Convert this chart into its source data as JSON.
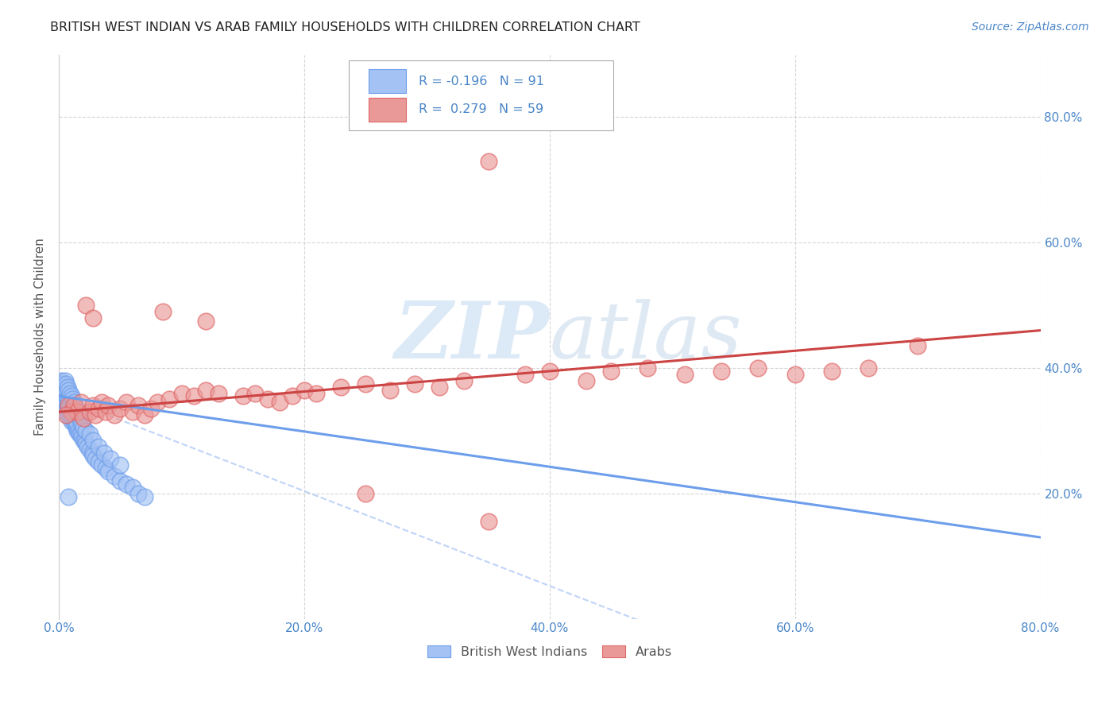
{
  "title": "BRITISH WEST INDIAN VS ARAB FAMILY HOUSEHOLDS WITH CHILDREN CORRELATION CHART",
  "source": "Source: ZipAtlas.com",
  "ylabel": "Family Households with Children",
  "watermark_zip": "ZIP",
  "watermark_atlas": "atlas",
  "xlim": [
    0.0,
    0.8
  ],
  "ylim": [
    0.0,
    0.9
  ],
  "xticks": [
    0.0,
    0.2,
    0.4,
    0.6,
    0.8
  ],
  "yticks": [
    0.2,
    0.4,
    0.6,
    0.8
  ],
  "blue_color": "#a4c2f4",
  "pink_color": "#ea9999",
  "blue_edge_color": "#6d9eeb",
  "pink_edge_color": "#e06666",
  "blue_line_color": "#6d9eeb",
  "pink_line_color": "#cc4444",
  "blue_dash_color": "#a4c2f4",
  "axis_tick_color": "#4a86c8",
  "grid_color": "#cccccc",
  "title_color": "#222222",
  "source_color": "#4a86c8",
  "ylabel_color": "#555555",
  "legend_text_color": "#4a86c8",
  "legend_r1_color": "#4a86c8",
  "legend_n1_color": "#4a86c8",
  "legend_r2_color": "#4a86c8",
  "legend_n2_color": "#4a86c8",
  "bottom_legend_color": "#555555",
  "bwi_x": [
    0.001,
    0.002,
    0.002,
    0.003,
    0.003,
    0.003,
    0.004,
    0.004,
    0.004,
    0.004,
    0.005,
    0.005,
    0.005,
    0.005,
    0.005,
    0.006,
    0.006,
    0.006,
    0.006,
    0.007,
    0.007,
    0.007,
    0.008,
    0.008,
    0.008,
    0.009,
    0.009,
    0.009,
    0.01,
    0.01,
    0.01,
    0.01,
    0.011,
    0.011,
    0.012,
    0.012,
    0.013,
    0.013,
    0.014,
    0.014,
    0.015,
    0.015,
    0.016,
    0.017,
    0.018,
    0.019,
    0.02,
    0.021,
    0.022,
    0.023,
    0.025,
    0.027,
    0.028,
    0.03,
    0.032,
    0.035,
    0.038,
    0.04,
    0.045,
    0.05,
    0.055,
    0.06,
    0.065,
    0.07,
    0.002,
    0.003,
    0.004,
    0.005,
    0.006,
    0.007,
    0.008,
    0.009,
    0.01,
    0.011,
    0.012,
    0.013,
    0.014,
    0.015,
    0.016,
    0.017,
    0.018,
    0.019,
    0.02,
    0.022,
    0.025,
    0.028,
    0.032,
    0.037,
    0.042,
    0.05,
    0.008
  ],
  "bwi_y": [
    0.355,
    0.36,
    0.37,
    0.34,
    0.35,
    0.36,
    0.34,
    0.345,
    0.355,
    0.365,
    0.33,
    0.34,
    0.35,
    0.36,
    0.37,
    0.335,
    0.345,
    0.355,
    0.365,
    0.33,
    0.34,
    0.35,
    0.325,
    0.335,
    0.345,
    0.32,
    0.33,
    0.34,
    0.315,
    0.325,
    0.335,
    0.345,
    0.32,
    0.33,
    0.315,
    0.325,
    0.31,
    0.32,
    0.305,
    0.315,
    0.3,
    0.31,
    0.3,
    0.295,
    0.295,
    0.29,
    0.285,
    0.285,
    0.28,
    0.275,
    0.27,
    0.265,
    0.26,
    0.255,
    0.25,
    0.245,
    0.24,
    0.235,
    0.228,
    0.22,
    0.215,
    0.21,
    0.2,
    0.195,
    0.38,
    0.375,
    0.37,
    0.38,
    0.375,
    0.37,
    0.365,
    0.36,
    0.355,
    0.35,
    0.345,
    0.34,
    0.335,
    0.33,
    0.325,
    0.32,
    0.315,
    0.31,
    0.305,
    0.3,
    0.295,
    0.285,
    0.275,
    0.265,
    0.255,
    0.245,
    0.195
  ],
  "arab_x": [
    0.008,
    0.01,
    0.012,
    0.015,
    0.018,
    0.02,
    0.025,
    0.028,
    0.03,
    0.032,
    0.035,
    0.038,
    0.04,
    0.045,
    0.05,
    0.055,
    0.06,
    0.065,
    0.07,
    0.075,
    0.08,
    0.09,
    0.1,
    0.11,
    0.12,
    0.13,
    0.15,
    0.16,
    0.17,
    0.18,
    0.19,
    0.2,
    0.21,
    0.23,
    0.25,
    0.27,
    0.29,
    0.31,
    0.33,
    0.35,
    0.38,
    0.4,
    0.43,
    0.45,
    0.48,
    0.51,
    0.54,
    0.57,
    0.6,
    0.63,
    0.66,
    0.7,
    0.006,
    0.022,
    0.028,
    0.085,
    0.12,
    0.25,
    0.35
  ],
  "arab_y": [
    0.34,
    0.33,
    0.34,
    0.33,
    0.345,
    0.32,
    0.33,
    0.34,
    0.325,
    0.335,
    0.345,
    0.33,
    0.34,
    0.325,
    0.335,
    0.345,
    0.33,
    0.34,
    0.325,
    0.335,
    0.345,
    0.35,
    0.36,
    0.355,
    0.365,
    0.36,
    0.355,
    0.36,
    0.35,
    0.345,
    0.355,
    0.365,
    0.36,
    0.37,
    0.375,
    0.365,
    0.375,
    0.37,
    0.38,
    0.73,
    0.39,
    0.395,
    0.38,
    0.395,
    0.4,
    0.39,
    0.395,
    0.4,
    0.39,
    0.395,
    0.4,
    0.435,
    0.325,
    0.5,
    0.48,
    0.49,
    0.475,
    0.2,
    0.155
  ],
  "bwi_trend": [
    0.355,
    0.13
  ],
  "arab_trend": [
    0.33,
    0.46
  ],
  "bwi_dash_trend": [
    0.355,
    -0.25
  ]
}
